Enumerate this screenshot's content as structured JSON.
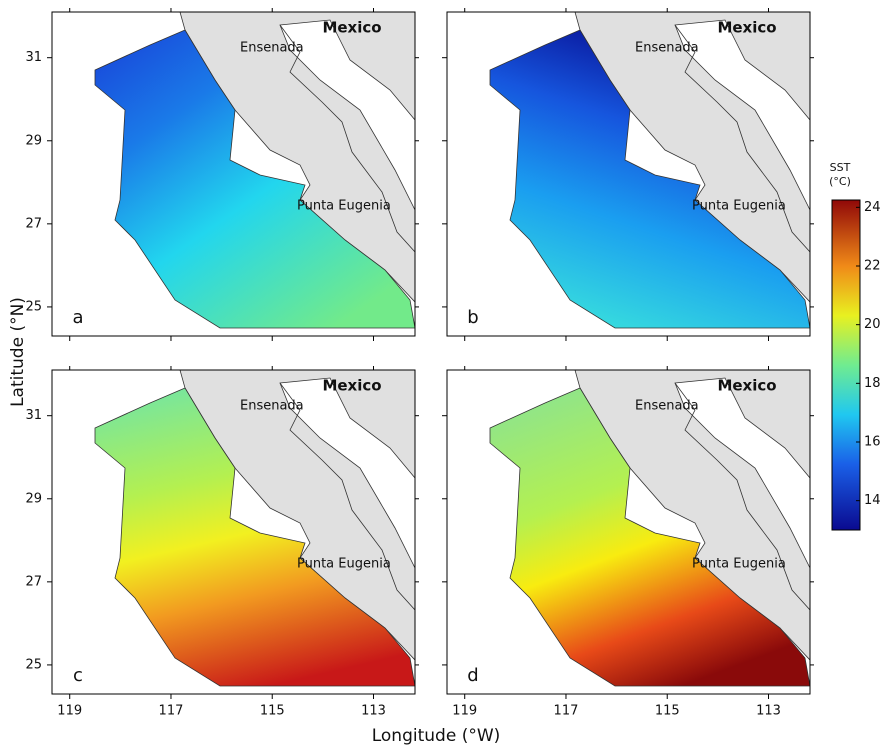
{
  "axes": {
    "y_title": "Latitude (°N)",
    "x_title": "Longitude (°W)",
    "xlim": [
      119.35,
      112.18
    ],
    "xticks": [
      119,
      117,
      115,
      113
    ],
    "ylim": [
      24.3,
      32.1
    ],
    "yticks": [
      31,
      29,
      27,
      25
    ]
  },
  "panels": [
    {
      "letter": "a",
      "country": "Mexico",
      "places": [
        "Ensenada",
        "Punta Eugenia"
      ]
    },
    {
      "letter": "b",
      "country": "Mexico",
      "places": [
        "Ensenada",
        "Punta Eugenia"
      ]
    },
    {
      "letter": "c",
      "country": "Mexico",
      "places": [
        "Ensenada",
        "Punta Eugenia"
      ]
    },
    {
      "letter": "d",
      "country": "Mexico",
      "places": [
        "Ensenada",
        "Punta Eugenia"
      ]
    }
  ],
  "colorbar": {
    "label_lines": [
      "SST",
      "(°C)"
    ],
    "range": [
      13,
      24.25
    ],
    "ticks": [
      14,
      16,
      18,
      20,
      22,
      24
    ]
  }
}
